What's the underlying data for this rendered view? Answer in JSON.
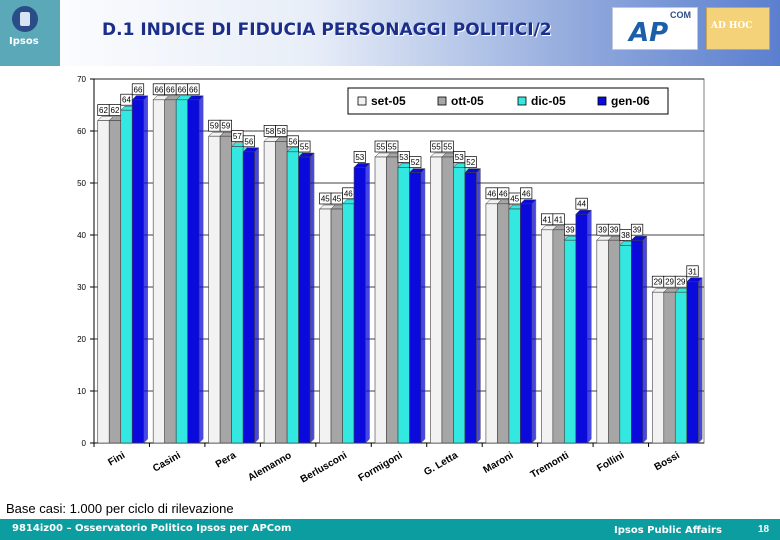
{
  "header": {
    "title": "D.1 INDICE DI FIDUCIA PERSONAGGI POLITICI/2",
    "logo_ipsos": "Ipsos",
    "logo_apcom_com": "COM",
    "logo_apcom_ap": "AP",
    "logo_adhoc": "AD HOC"
  },
  "chart_data": {
    "type": "bar",
    "categories": [
      "Fini",
      "Casini",
      "Pera",
      "Alemanno",
      "Berlusconi",
      "Formigoni",
      "G. Letta",
      "Maroni",
      "Tremonti",
      "Follini",
      "Bossi"
    ],
    "series": [
      {
        "name": "set-05",
        "values": [
          62,
          66,
          59,
          58,
          45,
          55,
          55,
          46,
          41,
          39,
          29
        ]
      },
      {
        "name": "ott-05",
        "values": [
          62,
          66,
          59,
          58,
          45,
          55,
          55,
          46,
          41,
          39,
          29
        ]
      },
      {
        "name": "dic-05",
        "values": [
          64,
          66,
          57,
          56,
          46,
          53,
          53,
          45,
          39,
          38,
          29
        ]
      },
      {
        "name": "gen-06",
        "values": [
          66,
          66,
          56,
          55,
          53,
          52,
          52,
          46,
          44,
          39,
          31
        ]
      }
    ],
    "series_colors": [
      "#f2f2f2",
      "#a6a6a6",
      "#33e8e0",
      "#0a0adc"
    ],
    "ylim": [
      0,
      70
    ],
    "yticks": [
      0,
      10,
      20,
      30,
      40,
      50,
      60,
      70
    ],
    "grid": true,
    "legend": "top-right",
    "title": "",
    "xlabel": "",
    "ylabel": ""
  },
  "footer": {
    "note": "Base casi: 1.000 per ciclo di rilevazione",
    "left": "9814iz00 – Osservatorio Politico Ipsos per APCom",
    "right": "Ipsos Public Affairs",
    "page": "18"
  }
}
